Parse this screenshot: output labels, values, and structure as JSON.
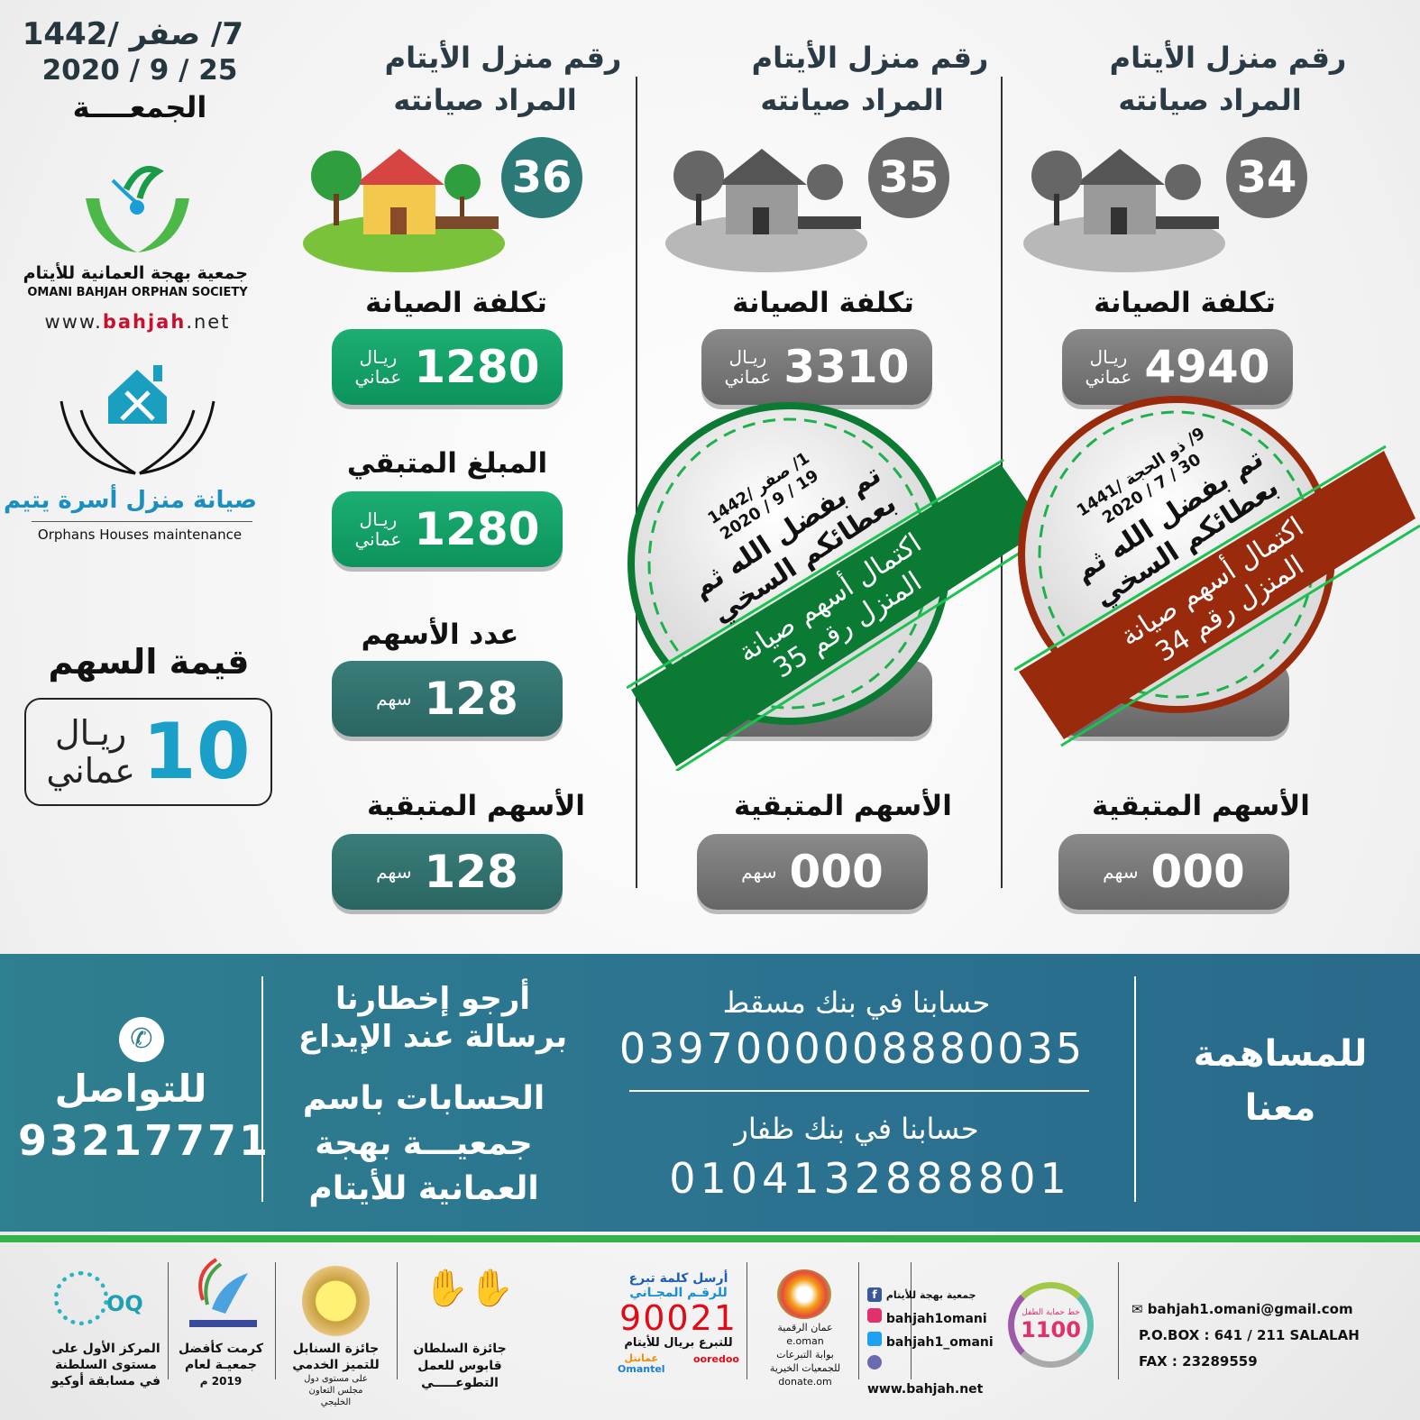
{
  "date": {
    "hijri": "7/ صفر /1442",
    "gregorian": "2020 / 9 / 25",
    "day": "الجمعــــة"
  },
  "society": {
    "name_ar": "جمعية بهجة العمانية للأيتام",
    "name_en": "OMANI BAHJAH ORPHAN SOCIETY",
    "website_prefix": "www.",
    "website_brand": "bahjah",
    "website_suffix": ".net"
  },
  "project": {
    "name_ar": "صيانة منزل أسرة يتيم",
    "name_en": "Orphans Houses maintenance"
  },
  "share_value": {
    "label": "قيمة السهم",
    "amount": "10",
    "currency_line1": "ريـال",
    "currency_line2": "عماني"
  },
  "labels": {
    "house_title_1": "رقم منزل الأيتام",
    "house_title_2": "المراد صيانته",
    "cost": "تكلفة الصيانة",
    "remaining_amount": "المبلغ المتبقي",
    "shares_count": "عدد الأسهم",
    "remaining_shares": "الأسهم المتبقية",
    "rial": "ريـال",
    "omani": "عماني",
    "share_unit": "سهم"
  },
  "colors": {
    "green": "#13a06a",
    "teal": "#2f6e6c",
    "gray": "#6e6e6e",
    "stamp_green": "#0b7a32",
    "stamp_red": "#9a2a0c",
    "band": "#2c7a8e"
  },
  "houses": [
    {
      "number": "36",
      "status": "active",
      "cost": "1280",
      "remaining_amount": "1280",
      "shares_count": "128",
      "remaining_shares": "128"
    },
    {
      "number": "35",
      "status": "completed",
      "cost": "3310",
      "remaining_shares": "000",
      "stamp": {
        "hijri": "1/ صفر /1442",
        "gregorian": "2020 / 9 / 19",
        "line1": "تم بفضل الله ثم",
        "line2": "بعطائكم السخي",
        "ribbon1": "اكتمال أسهم صيانة",
        "ribbon2": "المنزل رقم 35"
      }
    },
    {
      "number": "34",
      "status": "completed",
      "cost": "4940",
      "remaining_shares": "000",
      "stamp": {
        "hijri": "9/ ذو الحجة /1441",
        "gregorian": "2020 / 7 / 30",
        "line1": "تم بفضل الله ثم",
        "line2": "بعطائكم السخي",
        "ribbon1": "اكتمال أسهم صيانة",
        "ribbon2": "المنزل رقم 34"
      }
    }
  ],
  "band": {
    "contribute_1": "للمساهمة",
    "contribute_2": "معنا",
    "muscat_label": "حسابنا في بنك مسقط",
    "muscat_account": "0397000008880035",
    "dhofar_label": "حسابنا في بنك ظفار",
    "dhofar_account": "0104132888801",
    "notify_1": "أرجو إخطارنا",
    "notify_2": "برسالة عند الإيداع",
    "accounts_name_1": "الحسابات باسم",
    "accounts_name_2": "جمعيـــة بهجة",
    "accounts_name_3": "العمانية للأيتام",
    "contact_label": "للتواصل",
    "contact_phone": "93217771"
  },
  "footer": {
    "email": "bahjah1.omani@gmail.com",
    "pobox": "P.O.BOX : 641 / 211 SALALAH",
    "fax": "FAX : 23289559",
    "child_line_label": "خط حماية الطفل",
    "child_line": "1100",
    "facebook": "جمعية بهجة للأيتام",
    "instagram": "bahjah1omani",
    "twitter": "bahjah1_omani",
    "web": "www.bahjah.net",
    "eoman_1": "عمان الرقمية",
    "eoman_2": "e.oman",
    "eoman_3": "بوابة التبرعات",
    "eoman_4": "للجمعيات الخيرية",
    "eoman_5": "donate.om",
    "sms_1": "أرسل كلمة تبرع",
    "sms_2": "للرقـم المجـاني",
    "sms_number": "90021",
    "sms_3": "للتبرع بريال للأيتام",
    "omantel_ar": "عمانتل",
    "omantel_en": "Omantel",
    "ooredoo": "ooredoo",
    "award1_1": "جائزة السلطان",
    "award1_2": "قابوس للعمل",
    "award1_3": "التطوعـــــي",
    "award2_1": "جائزة السنابل",
    "award2_2": "للتميز الخدمي",
    "award2_3": "على مستوى دول",
    "award2_4": "مجلس التعاون",
    "award2_5": "الخليجي",
    "award3_1": "كرمت كأفضل",
    "award3_2": "جمعيـة لعام",
    "award3_3": "2019 م",
    "award4_1": "المركز الأول على",
    "award4_2": "مستوى السلطنة",
    "award4_3": "في مسابقة أوكيو",
    "award4_logo": "OQ"
  }
}
